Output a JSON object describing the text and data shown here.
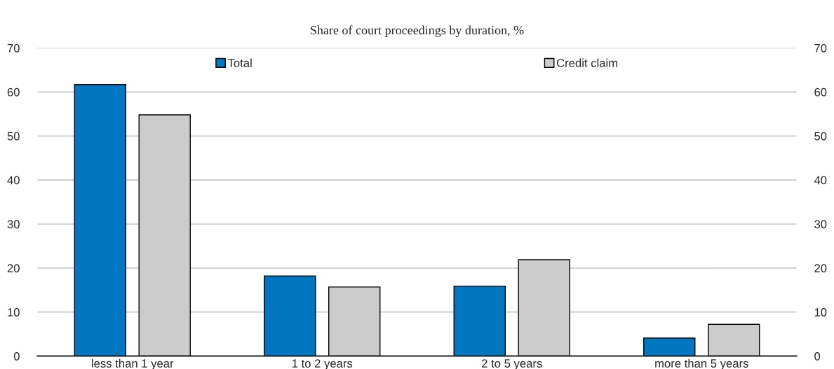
{
  "chart_data": {
    "type": "bar",
    "title": "Share of court proceedings by duration, %",
    "categories": [
      "less than 1 year",
      "1 to 2 years",
      "2 to 5 years",
      "more than 5 years"
    ],
    "series": [
      {
        "name": "Total",
        "color": "#0077c0",
        "values": [
          61.7,
          18.2,
          15.9,
          4.1
        ]
      },
      {
        "name": "Credit claim",
        "color": "#cccccc",
        "values": [
          54.8,
          15.7,
          21.9,
          7.2
        ]
      }
    ],
    "ylim": [
      0,
      70
    ],
    "yticks": [
      0,
      10,
      20,
      30,
      40,
      50,
      60,
      70
    ],
    "y2lim": [
      0,
      70
    ],
    "y2ticks": [
      0,
      10,
      20,
      30,
      40,
      50,
      60,
      70
    ],
    "grid": "y",
    "legend": "top"
  }
}
